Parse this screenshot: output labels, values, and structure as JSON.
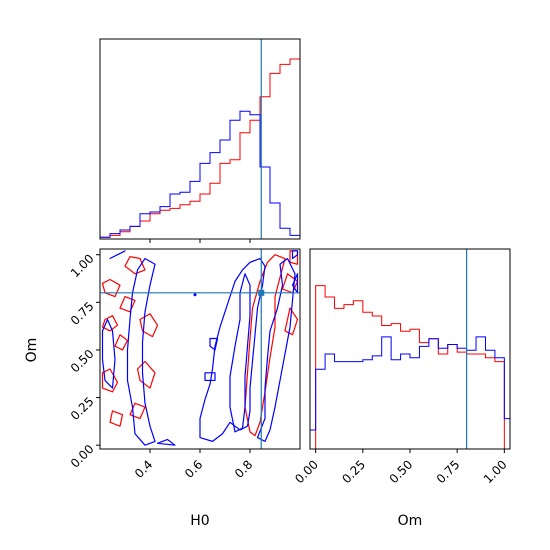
{
  "colors": {
    "red": "#ff0000",
    "blue": "#0000ff",
    "truth": "#1f77b4",
    "axes": "#000000",
    "background": "#ffffff"
  },
  "chart_data": [
    {
      "id": "hist-H0",
      "type": "histogram-step",
      "xlim": [
        0.2,
        1.0
      ],
      "ylim": [
        0,
        1.0
      ],
      "truth": 0.845,
      "x_ticks": [
        0.4,
        0.6,
        0.8
      ],
      "tick_labels_visible": false,
      "y_ticks_visible": false,
      "bin_edges": [
        0.2,
        0.24,
        0.28,
        0.32,
        0.36,
        0.4,
        0.44,
        0.48,
        0.52,
        0.56,
        0.6,
        0.64,
        0.68,
        0.72,
        0.76,
        0.8,
        0.84,
        0.88,
        0.92,
        0.96,
        1.0
      ],
      "series": [
        {
          "name": "",
          "color": "red",
          "values": [
            0.01,
            0.02,
            0.04,
            0.07,
            0.1,
            0.14,
            0.16,
            0.17,
            0.19,
            0.21,
            0.25,
            0.31,
            0.42,
            0.44,
            0.59,
            0.66,
            0.79,
            0.92,
            0.97,
            1.0
          ]
        },
        {
          "name": "",
          "color": "blue",
          "values": [
            0.01,
            0.03,
            0.05,
            0.07,
            0.14,
            0.15,
            0.18,
            0.25,
            0.26,
            0.32,
            0.42,
            0.48,
            0.55,
            0.66,
            0.71,
            0.69,
            0.4,
            0.2,
            0.06,
            0.02
          ]
        }
      ]
    },
    {
      "id": "hist-Om",
      "type": "histogram-step",
      "xlim": [
        -0.03,
        1.03
      ],
      "ylim": [
        0,
        1.0
      ],
      "truth": 0.8,
      "x_ticks": [
        0.0,
        0.25,
        0.5,
        0.75,
        1.0
      ],
      "x_tick_labels": [
        "0.00",
        "0.25",
        "0.50",
        "0.75",
        "1.00"
      ],
      "xlabel": "Om",
      "y_ticks_visible": false,
      "bin_edges": [
        -0.03,
        0.0,
        0.05,
        0.1,
        0.15,
        0.2,
        0.25,
        0.3,
        0.35,
        0.4,
        0.45,
        0.5,
        0.55,
        0.6,
        0.65,
        0.7,
        0.75,
        0.8,
        0.85,
        0.9,
        0.95,
        1.0,
        1.03
      ],
      "series": [
        {
          "name": "",
          "color": "red",
          "values": [
            0.0,
            0.86,
            0.8,
            0.74,
            0.76,
            0.78,
            0.72,
            0.7,
            0.65,
            0.66,
            0.62,
            0.63,
            0.56,
            0.58,
            0.5,
            0.55,
            0.51,
            0.5,
            0.5,
            0.48,
            0.46,
            0.0
          ]
        },
        {
          "name": "",
          "color": "blue",
          "values": [
            0.1,
            0.42,
            0.5,
            0.46,
            0.46,
            0.46,
            0.47,
            0.49,
            0.59,
            0.47,
            0.5,
            0.48,
            0.54,
            0.58,
            0.53,
            0.55,
            0.53,
            0.52,
            0.59,
            0.52,
            0.48,
            0.16
          ]
        }
      ]
    },
    {
      "id": "contour-H0-Om",
      "type": "contour",
      "xlim": [
        0.2,
        1.0
      ],
      "ylim": [
        -0.02,
        1.03
      ],
      "truth": [
        0.845,
        0.8
      ],
      "x_ticks": [
        0.4,
        0.6,
        0.8
      ],
      "x_tick_labels": [
        "0.4",
        "0.6",
        "0.8"
      ],
      "y_ticks": [
        0.0,
        0.25,
        0.5,
        0.75,
        1.0
      ],
      "y_tick_labels": [
        "0.00",
        "0.25",
        "0.50",
        "0.75",
        "1.00"
      ],
      "xlabel": "H0",
      "ylabel": "Om",
      "series": [
        {
          "name": "",
          "color": "red",
          "contours": [
            [
              [
                0.21,
                0.3
              ],
              [
                0.25,
                0.28
              ],
              [
                0.27,
                0.33
              ],
              [
                0.24,
                0.4
              ],
              [
                0.21,
                0.38
              ]
            ],
            [
              [
                0.21,
                0.62
              ],
              [
                0.24,
                0.6
              ],
              [
                0.27,
                0.63
              ],
              [
                0.25,
                0.68
              ],
              [
                0.22,
                0.66
              ]
            ],
            [
              [
                0.26,
                0.52
              ],
              [
                0.29,
                0.5
              ],
              [
                0.31,
                0.55
              ],
              [
                0.28,
                0.58
              ]
            ],
            [
              [
                0.28,
                0.72
              ],
              [
                0.32,
                0.7
              ],
              [
                0.34,
                0.76
              ],
              [
                0.3,
                0.78
              ]
            ],
            [
              [
                0.22,
                0.8
              ],
              [
                0.26,
                0.78
              ],
              [
                0.28,
                0.84
              ],
              [
                0.24,
                0.87
              ],
              [
                0.21,
                0.85
              ]
            ],
            [
              [
                0.3,
                0.94
              ],
              [
                0.34,
                0.9
              ],
              [
                0.38,
                0.92
              ],
              [
                0.36,
                0.98
              ],
              [
                0.32,
                0.99
              ]
            ],
            [
              [
                0.36,
                0.34
              ],
              [
                0.4,
                0.3
              ],
              [
                0.42,
                0.38
              ],
              [
                0.38,
                0.44
              ],
              [
                0.35,
                0.4
              ]
            ],
            [
              [
                0.37,
                0.6
              ],
              [
                0.41,
                0.57
              ],
              [
                0.43,
                0.63
              ],
              [
                0.4,
                0.69
              ],
              [
                0.36,
                0.66
              ]
            ],
            [
              [
                0.32,
                0.16
              ],
              [
                0.36,
                0.14
              ],
              [
                0.38,
                0.2
              ],
              [
                0.34,
                0.22
              ]
            ],
            [
              [
                0.24,
                0.12
              ],
              [
                0.28,
                0.1
              ],
              [
                0.29,
                0.16
              ],
              [
                0.25,
                0.18
              ]
            ],
            [
              [
                0.8,
                0.07
              ],
              [
                0.78,
                0.2
              ],
              [
                0.79,
                0.38
              ],
              [
                0.8,
                0.56
              ],
              [
                0.81,
                0.72
              ],
              [
                0.84,
                0.86
              ],
              [
                0.87,
                0.96
              ],
              [
                0.9,
                1.0
              ],
              [
                0.94,
                0.98
              ],
              [
                0.92,
                0.88
              ],
              [
                0.9,
                0.78
              ],
              [
                0.9,
                0.62
              ],
              [
                0.88,
                0.46
              ],
              [
                0.86,
                0.28
              ],
              [
                0.84,
                0.12
              ],
              [
                0.82,
                0.05
              ]
            ],
            [
              [
                0.94,
                0.6
              ],
              [
                0.97,
                0.58
              ],
              [
                0.99,
                0.66
              ],
              [
                0.96,
                0.72
              ]
            ],
            [
              [
                0.93,
                0.82
              ],
              [
                0.97,
                0.8
              ],
              [
                0.99,
                0.86
              ],
              [
                0.95,
                0.9
              ]
            ],
            [
              [
                0.96,
                0.96
              ],
              [
                0.99,
                0.95
              ],
              [
                0.99,
                1.02
              ],
              [
                0.96,
                1.02
              ]
            ]
          ]
        },
        {
          "name": "",
          "color": "blue",
          "contours": [
            [
              [
                0.38,
                0.0
              ],
              [
                0.34,
                0.06
              ],
              [
                0.33,
                0.2
              ],
              [
                0.31,
                0.34
              ],
              [
                0.31,
                0.5
              ],
              [
                0.32,
                0.66
              ],
              [
                0.33,
                0.8
              ],
              [
                0.35,
                0.92
              ],
              [
                0.38,
                0.98
              ],
              [
                0.42,
                0.95
              ],
              [
                0.4,
                0.84
              ],
              [
                0.38,
                0.7
              ],
              [
                0.37,
                0.54
              ],
              [
                0.37,
                0.38
              ],
              [
                0.38,
                0.22
              ],
              [
                0.4,
                0.1
              ],
              [
                0.42,
                0.02
              ]
            ],
            [
              [
                0.22,
                0.34
              ],
              [
                0.25,
                0.3
              ],
              [
                0.26,
                0.45
              ],
              [
                0.25,
                0.6
              ],
              [
                0.23,
                0.66
              ],
              [
                0.21,
                0.6
              ],
              [
                0.21,
                0.45
              ]
            ],
            [
              [
                0.43,
                0.01
              ],
              [
                0.47,
                0.03
              ],
              [
                0.5,
                0.0
              ]
            ],
            [
              [
                0.24,
                0.98
              ],
              [
                0.27,
                1.0
              ],
              [
                0.3,
                1.02
              ]
            ],
            [
              [
                0.6,
                0.04
              ],
              [
                0.6,
                0.14
              ],
              [
                0.62,
                0.24
              ],
              [
                0.64,
                0.32
              ],
              [
                0.65,
                0.4
              ],
              [
                0.66,
                0.52
              ],
              [
                0.68,
                0.62
              ],
              [
                0.7,
                0.7
              ],
              [
                0.72,
                0.78
              ],
              [
                0.74,
                0.86
              ],
              [
                0.77,
                0.92
              ],
              [
                0.8,
                0.96
              ],
              [
                0.84,
                0.98
              ],
              [
                0.86,
                0.94
              ],
              [
                0.85,
                0.84
              ],
              [
                0.83,
                0.72
              ],
              [
                0.82,
                0.58
              ],
              [
                0.81,
                0.44
              ],
              [
                0.8,
                0.3
              ],
              [
                0.8,
                0.18
              ],
              [
                0.79,
                0.1
              ],
              [
                0.76,
                0.08
              ],
              [
                0.72,
                0.12
              ],
              [
                0.69,
                0.06
              ],
              [
                0.65,
                0.02
              ]
            ],
            [
              [
                0.74,
                0.07
              ],
              [
                0.72,
                0.2
              ],
              [
                0.72,
                0.36
              ],
              [
                0.74,
                0.52
              ],
              [
                0.76,
                0.66
              ],
              [
                0.76,
                0.8
              ],
              [
                0.78,
                0.9
              ],
              [
                0.8,
                0.84
              ],
              [
                0.8,
                0.68
              ],
              [
                0.79,
                0.52
              ],
              [
                0.78,
                0.36
              ],
              [
                0.78,
                0.2
              ],
              [
                0.77,
                0.09
              ]
            ],
            [
              [
                0.83,
                0.04
              ],
              [
                0.86,
                0.14
              ],
              [
                0.86,
                0.3
              ],
              [
                0.87,
                0.46
              ],
              [
                0.88,
                0.6
              ],
              [
                0.91,
                0.72
              ],
              [
                0.93,
                0.84
              ],
              [
                0.92,
                0.95
              ],
              [
                0.95,
                0.98
              ],
              [
                0.98,
                0.9
              ],
              [
                0.97,
                0.76
              ],
              [
                0.96,
                0.62
              ],
              [
                0.94,
                0.48
              ],
              [
                0.92,
                0.34
              ],
              [
                0.9,
                0.2
              ],
              [
                0.88,
                0.08
              ],
              [
                0.86,
                0.02
              ]
            ],
            [
              [
                0.62,
                0.34
              ],
              [
                0.66,
                0.34
              ],
              [
                0.66,
                0.38
              ],
              [
                0.62,
                0.38
              ]
            ],
            [
              [
                0.64,
                0.52
              ],
              [
                0.66,
                0.5
              ],
              [
                0.67,
                0.56
              ],
              [
                0.64,
                0.56
              ]
            ],
            [
              [
                0.97,
                0.84
              ],
              [
                0.99,
                0.8
              ],
              [
                0.99,
                0.9
              ]
            ],
            [
              [
                0.97,
                0.98
              ],
              [
                0.99,
                1.0
              ],
              [
                0.99,
                1.02
              ],
              [
                0.97,
                1.02
              ]
            ]
          ],
          "points": [
            [
              0.58,
              0.79
            ]
          ]
        }
      ]
    }
  ]
}
